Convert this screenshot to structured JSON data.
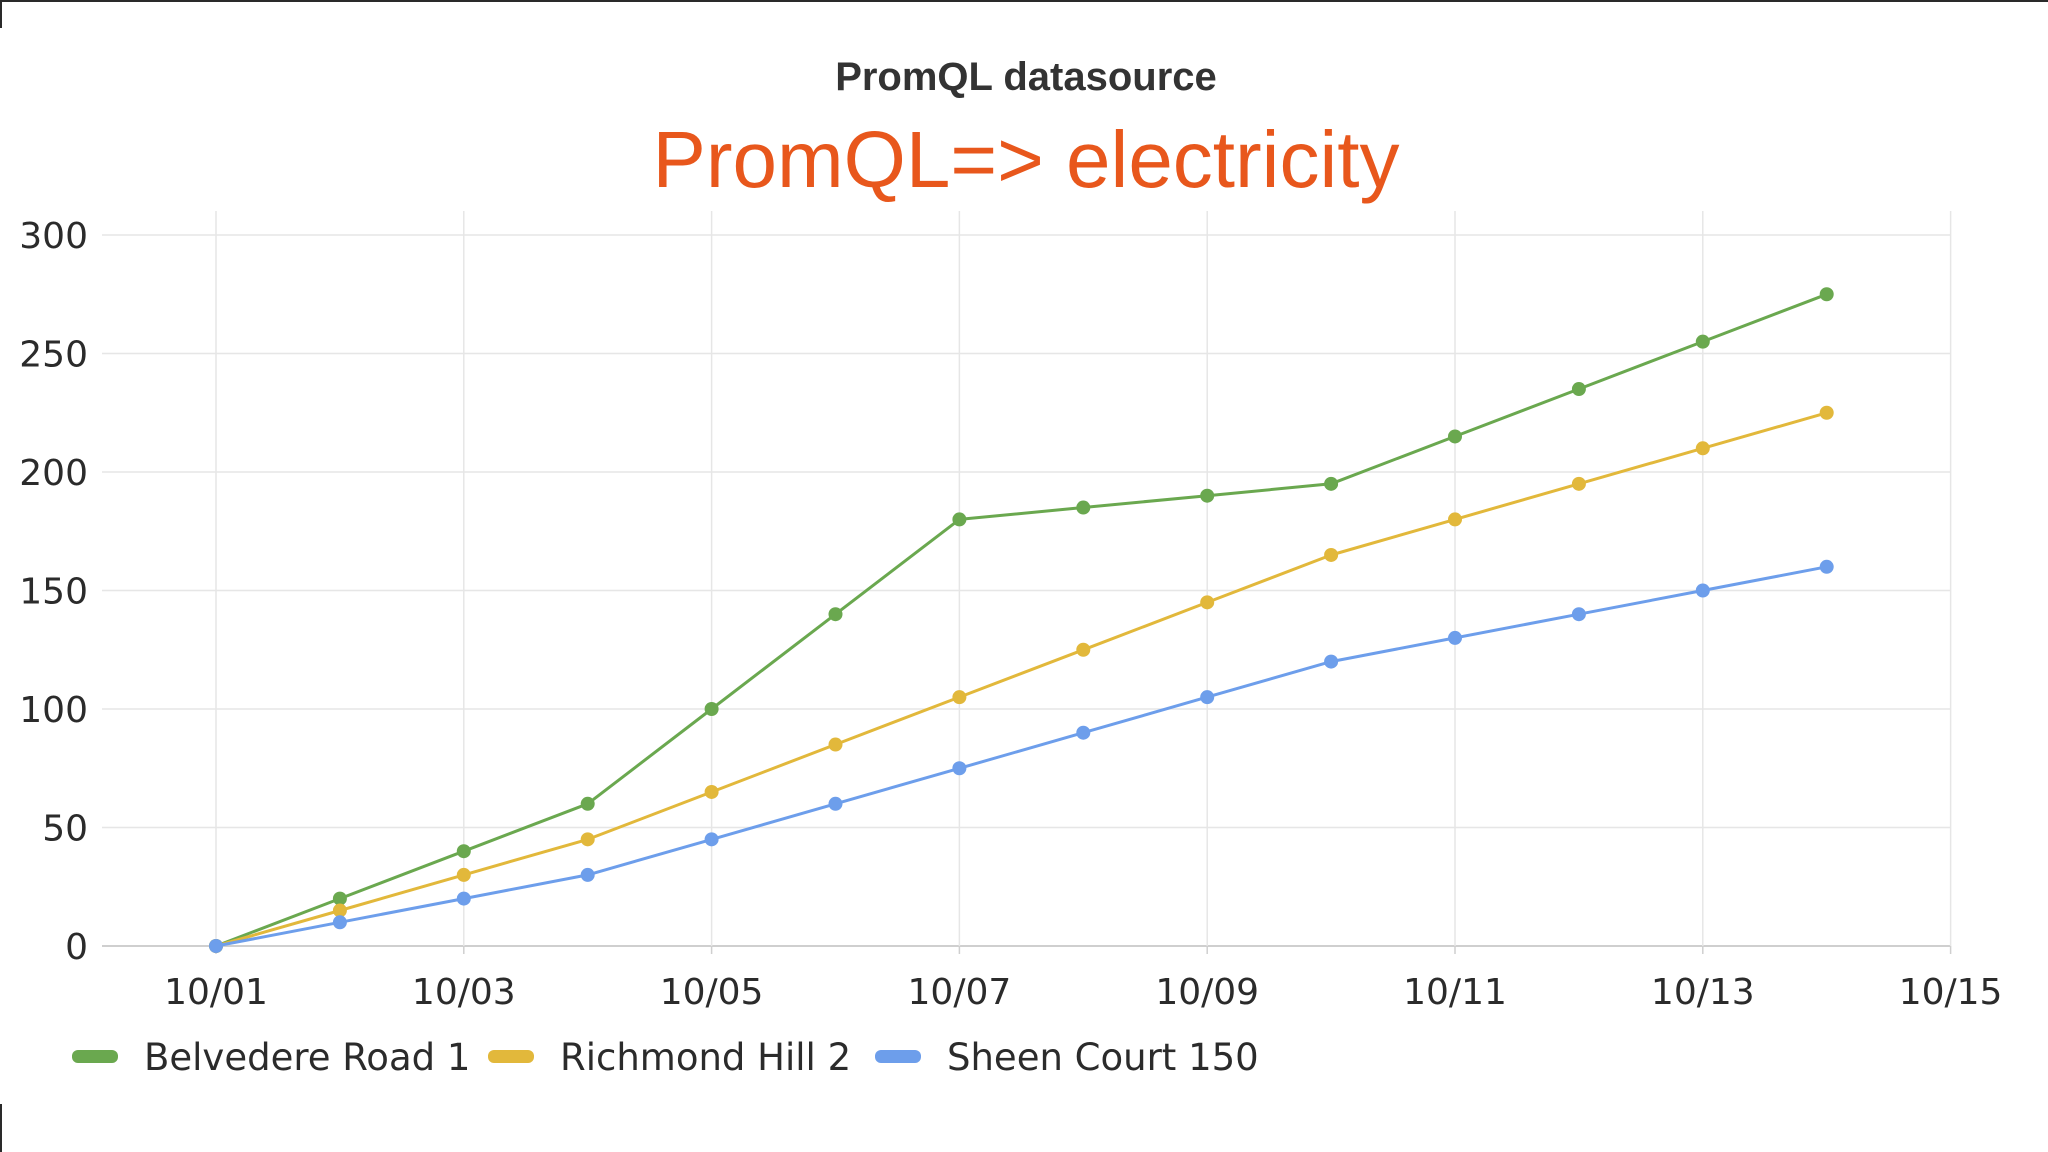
{
  "slide_title": "PromQL=> electricity",
  "chart_data": {
    "type": "line",
    "title": "PromQL datasource",
    "xlabel": "",
    "ylabel": "",
    "x": [
      "10/01",
      "10/02",
      "10/03",
      "10/04",
      "10/05",
      "10/06",
      "10/07",
      "10/08",
      "10/09",
      "10/10",
      "10/11",
      "10/12",
      "10/13",
      "10/14"
    ],
    "x_tick_labels": [
      "10/01",
      "10/03",
      "10/05",
      "10/07",
      "10/09",
      "10/11",
      "10/13",
      "10/15"
    ],
    "y_tick_labels": [
      "0",
      "50",
      "100",
      "150",
      "200",
      "250",
      "300"
    ],
    "ylim": [
      0,
      300
    ],
    "grid": true,
    "legend_position": "bottom-left",
    "series": [
      {
        "name": "Belvedere Road 1",
        "color": "#6aa84f",
        "values": [
          0,
          20,
          40,
          60,
          100,
          140,
          180,
          185,
          190,
          195,
          215,
          235,
          255,
          275
        ]
      },
      {
        "name": "Richmond Hill 2",
        "color": "#e2b83b",
        "values": [
          0,
          15,
          30,
          45,
          65,
          85,
          105,
          125,
          145,
          165,
          180,
          195,
          210,
          225
        ]
      },
      {
        "name": "Sheen Court 150",
        "color": "#6d9eeb",
        "values": [
          0,
          10,
          20,
          30,
          45,
          60,
          75,
          90,
          105,
          120,
          130,
          140,
          150,
          160
        ]
      }
    ]
  }
}
